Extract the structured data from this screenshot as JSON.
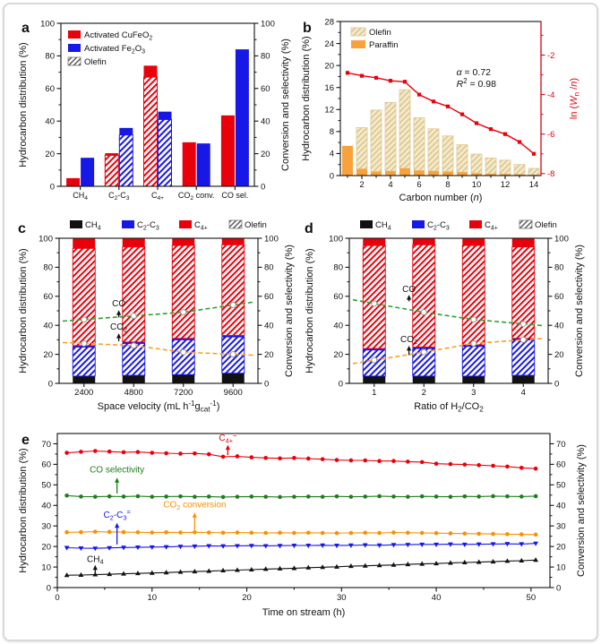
{
  "colors": {
    "red": "#e8000b",
    "blue": "#1717e6",
    "black": "#111111",
    "green_dashed": "#2ea02c",
    "orange_dashed": "#f9a226",
    "green_line": "#1e7d1e",
    "orange_line": "#f99000",
    "paraffin_orange": "#f9a13b",
    "tan_fill": "#f6ecca",
    "tan_stripe": "#dcc795",
    "axis_red": "#e8000b"
  },
  "chart_data": [
    {
      "panel": "a",
      "type": "bar",
      "ylabel_left": "Hydrocarbon distribution (%)",
      "ylabel_right": "Conversion and selectivity (%)",
      "ylim": [
        0,
        100
      ],
      "yticks": [
        0,
        20,
        40,
        60,
        80,
        100
      ],
      "categories": [
        "CH_{4}",
        "C_{2}-C_{3}",
        "C_{4+}",
        "CO_{2} conv.",
        "CO sel."
      ],
      "series": [
        {
          "name": "Activated CuFeO_{2}",
          "color": "#e8000b",
          "total": [
            5,
            20.3,
            74,
            27,
            43.5
          ],
          "olefin": [
            0,
            19,
            67,
            0,
            0
          ]
        },
        {
          "name": "Activated Fe_{2}O_{3}",
          "color": "#1717e6",
          "total": [
            17.5,
            35.8,
            45.8,
            26.3,
            84
          ],
          "olefin": [
            0,
            31.5,
            41,
            0,
            0
          ]
        }
      ],
      "legend_olefin": "Olefin"
    },
    {
      "panel": "b",
      "type": "bar+line",
      "ylabel_left": "Hydrocarbon distribution (%)",
      "ylabel_right": "ln (~{W}_{n} /~{n})",
      "xlabel": "Carbon number (~{n})",
      "ylim_left": [
        0,
        28
      ],
      "yticks_left": [
        0,
        4,
        8,
        12,
        16,
        20,
        24,
        28
      ],
      "ylim_right": [
        -8.1,
        -0.3
      ],
      "yticks_right": [
        -2,
        -4,
        -6,
        -8
      ],
      "carbon_numbers": [
        1,
        2,
        3,
        4,
        5,
        6,
        7,
        8,
        9,
        10,
        11,
        12,
        13,
        14
      ],
      "paraffin": [
        5.4,
        1.2,
        0.7,
        0.8,
        1.3,
        0.9,
        0.8,
        0.7,
        0.6,
        0.4,
        0.3,
        0.25,
        0.2,
        0.1
      ],
      "total": [
        5.4,
        8.7,
        11.9,
        13.3,
        15.6,
        10.5,
        8.5,
        7.2,
        5.6,
        3.9,
        3.2,
        2.8,
        2.0,
        1.3
      ],
      "ln_wn_n": [
        -2.9,
        -3.05,
        -3.15,
        -3.3,
        -3.35,
        -4.0,
        -4.35,
        -4.6,
        -5.0,
        -5.45,
        -5.75,
        -6.0,
        -6.4,
        -7.0
      ],
      "legend": [
        "Olefin",
        "Paraffin"
      ],
      "annotations": [
        "~{α} = 0.72",
        "~{R}^{2} = 0.98"
      ]
    },
    {
      "panel": "c",
      "type": "stacked-bar+line",
      "ylabel_left": "Hydrocarbon distribution (%)",
      "ylabel_right": "Conversion and selectivity (%)",
      "xlabel": "Space velocity (mL h^{-1}g_{cat}^{-1})",
      "ylim": [
        0,
        100
      ],
      "yticks": [
        0,
        20,
        40,
        60,
        80,
        100
      ],
      "legend": [
        "CH_{4}",
        "C_{2}-C_{3}",
        "C_{4+}",
        "Olefin"
      ],
      "categories": [
        "2400",
        "4800",
        "7200",
        "9600"
      ],
      "bars": [
        {
          "ch4": 5,
          "c23_top": 26,
          "c23_olefin_top": 25,
          "c4_olefin_top": 93
        },
        {
          "ch4": 5.5,
          "c23_top": 28.5,
          "c23_olefin_top": 27.5,
          "c4_olefin_top": 94
        },
        {
          "ch4": 6,
          "c23_top": 31,
          "c23_olefin_top": 30,
          "c4_olefin_top": 95
        },
        {
          "ch4": 7,
          "c23_top": 33,
          "c23_olefin_top": 32,
          "c4_olefin_top": 95.5
        }
      ],
      "co_selectivity": [
        44,
        46.5,
        49,
        54
      ],
      "co2_conversion": [
        27.5,
        26,
        21.5,
        20
      ],
      "annotations": [
        {
          "text": "CO",
          "xf": 0.3,
          "ty": 53,
          "ay1": 45.5,
          "ay2": 50.5
        },
        {
          "text": "CO_{2}",
          "xf": 0.3,
          "ty": 37,
          "ay1": 29,
          "ay2": 34.5
        }
      ]
    },
    {
      "panel": "d",
      "type": "stacked-bar+line",
      "ylabel_left": "Hydrocarbon distribution (%)",
      "ylabel_right": "Conversion and selectivity (%)",
      "xlabel": "Ratio of H_{2}/CO_{2}",
      "ylim": [
        0,
        100
      ],
      "yticks": [
        0,
        20,
        40,
        60,
        80,
        100
      ],
      "legend": [
        "CH_{4}",
        "C_{2}-C_{3}",
        "C_{4+}",
        "Olefin"
      ],
      "categories": [
        "1",
        "2",
        "3",
        "4"
      ],
      "bars": [
        {
          "ch4": 5,
          "c23_top": 24,
          "c23_olefin_top": 23,
          "c4_olefin_top": 95
        },
        {
          "ch4": 5,
          "c23_top": 25,
          "c23_olefin_top": 24,
          "c4_olefin_top": 95.5
        },
        {
          "ch4": 5,
          "c23_top": 26.5,
          "c23_olefin_top": 25.5,
          "c4_olefin_top": 95
        },
        {
          "ch4": 5.5,
          "c23_top": 31,
          "c23_olefin_top": 30,
          "c4_olefin_top": 94
        }
      ],
      "co_selectivity": [
        55,
        49,
        44,
        41
      ],
      "co2_conversion": [
        16,
        21.5,
        27.5,
        30
      ],
      "annotations": [
        {
          "text": "CO",
          "xf": 0.3,
          "ty": 63,
          "ay1": 56.5,
          "ay2": 61
        },
        {
          "text": "CO_{2}",
          "xf": 0.3,
          "ty": 28.5,
          "ay1": 19.5,
          "ay2": 26
        }
      ]
    },
    {
      "panel": "e",
      "type": "line",
      "ylabel_left": "Hydrocarbon distribution (%)",
      "ylabel_right": "Conversion and selectivity (%)",
      "xlabel": "Time on stream (h)",
      "xlim": [
        0,
        52
      ],
      "xticks": [
        0,
        10,
        20,
        30,
        40,
        50
      ],
      "ylim": [
        0,
        75
      ],
      "yticks": [
        0,
        10,
        20,
        30,
        40,
        50,
        60,
        70
      ],
      "x": [
        1,
        2.5,
        4,
        5.5,
        7,
        8.5,
        10,
        11.5,
        13,
        14.5,
        16,
        17.5,
        19,
        20.5,
        22,
        23.5,
        25,
        26.5,
        28,
        29.5,
        31,
        32.5,
        34,
        35.5,
        37,
        38.5,
        40,
        41.5,
        43,
        44.5,
        46,
        47.5,
        49,
        50.5
      ],
      "series": [
        {
          "name": "C_{4+}^{=}",
          "color": "#e8000b",
          "marker": "circle",
          "values": [
            65.6,
            66.1,
            66.5,
            66.2,
            65.9,
            66.0,
            65.6,
            65.4,
            65.2,
            65.3,
            64.9,
            63.7,
            63.9,
            63.4,
            63.1,
            62.9,
            63.1,
            62.8,
            62.5,
            62.1,
            61.9,
            61.9,
            61.6,
            61.6,
            61.3,
            61.1,
            60.3,
            60.1,
            59.9,
            59.6,
            59.3,
            58.9,
            58.3,
            57.9
          ]
        },
        {
          "name": "CO selectivity",
          "color": "#1e7d1e",
          "marker": "circle",
          "values": [
            44.8,
            44.3,
            44.2,
            44.4,
            44.3,
            44.5,
            44.2,
            44.3,
            44.4,
            44.2,
            44.3,
            44.1,
            44.2,
            44.3,
            44.2,
            44.1,
            44.2,
            44.3,
            44.2,
            44.4,
            44.2,
            44.3,
            44.5,
            44.3,
            44.2,
            44.4,
            44.3,
            44.2,
            44.4,
            44.3,
            44.5,
            44.4,
            44.3,
            44.5
          ]
        },
        {
          "name": "CO_{2} conversion",
          "color": "#f99000",
          "marker": "circle",
          "values": [
            26.9,
            27.0,
            27.2,
            27.1,
            27.0,
            26.9,
            26.8,
            26.9,
            26.8,
            26.9,
            26.8,
            26.7,
            26.8,
            26.7,
            26.6,
            26.7,
            26.6,
            26.7,
            26.6,
            26.5,
            26.6,
            26.7,
            26.6,
            26.8,
            26.7,
            26.6,
            26.5,
            26.4,
            26.3,
            26.2,
            26.1,
            26.0,
            25.9,
            25.8
          ]
        },
        {
          "name": "C_{2}-C_{3}^{=}",
          "color": "#1717e6",
          "marker": "tri-down",
          "values": [
            19.4,
            19.2,
            19.1,
            19.3,
            19.5,
            19.6,
            19.7,
            19.8,
            20.0,
            20.1,
            20.3,
            20.2,
            20.3,
            20.4,
            20.3,
            20.4,
            20.5,
            20.5,
            20.6,
            20.5,
            20.6,
            20.7,
            20.6,
            20.8,
            20.9,
            21.0,
            21.0,
            21.1,
            21.0,
            21.1,
            21.2,
            21.3,
            21.2,
            21.5
          ]
        },
        {
          "name": "CH_{4}",
          "color": "#111111",
          "marker": "tri-up",
          "values": [
            6.0,
            6.1,
            6.3,
            6.5,
            6.7,
            6.9,
            7.1,
            7.3,
            7.6,
            7.8,
            8.0,
            8.3,
            8.5,
            8.7,
            9.0,
            9.2,
            9.4,
            9.7,
            9.9,
            10.1,
            10.4,
            10.6,
            10.8,
            11.0,
            11.3,
            11.5,
            11.7,
            12.0,
            12.2,
            12.4,
            12.6,
            12.9,
            13.1,
            13.4
          ]
        }
      ],
      "annotations": [
        {
          "text": "CH_{4}",
          "x": 4,
          "ty": 12.5,
          "ay1": 7.2,
          "ay2": 11,
          "color": "#111111"
        },
        {
          "text": "C_{2}-C_{3}^{=}",
          "x": 6.3,
          "ty": 34,
          "ay1": 21,
          "ay2": 31.5,
          "color": "#1717e6"
        },
        {
          "text": "CO_{2} conversion",
          "x": 14.5,
          "ty": 39,
          "ay1": 28,
          "ay2": 36.5,
          "color": "#f99000"
        },
        {
          "text": "CO selectivity",
          "x": 6.3,
          "ty": 56,
          "ay1": 45.8,
          "ay2": 53.5,
          "color": "#1e7d1e"
        },
        {
          "text": "C_{4+}^{=}",
          "x": 18,
          "ty": 71.5,
          "ay1": 64.5,
          "ay2": 69.5,
          "color": "#e8000b"
        }
      ]
    }
  ]
}
